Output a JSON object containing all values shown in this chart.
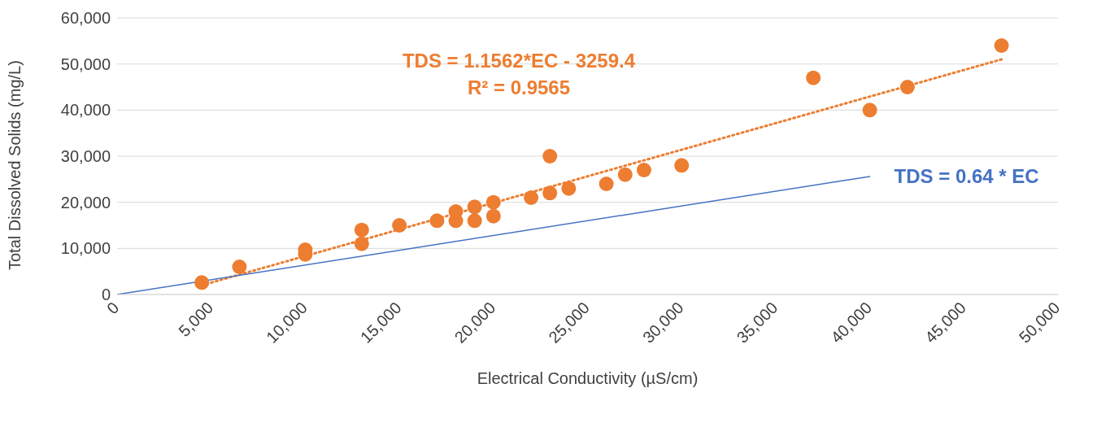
{
  "chart_data": {
    "type": "scatter",
    "xlabel": "Electrical Conductivity (µS/cm)",
    "ylabel": "Total Dissolved Solids (mg/L)",
    "xlim": [
      0,
      50000
    ],
    "xticks": [
      0,
      {
        "value": 5000,
        "label": "5,000"
      },
      {
        "value": 10000,
        "label": "10,000"
      },
      {
        "value": 15000,
        "label": "15,000"
      },
      {
        "value": 20000,
        "label": "20,000"
      },
      {
        "value": 25000,
        "label": "25,000"
      },
      {
        "value": 30000,
        "label": "30,000"
      },
      {
        "value": 35000,
        "label": "35,000"
      },
      {
        "value": 40000,
        "label": "40,000"
      },
      {
        "value": 45000,
        "label": "45,000"
      },
      {
        "value": 50000,
        "label": "50,000"
      }
    ],
    "ylim": [
      0,
      60000
    ],
    "yticks": [
      0,
      {
        "value": 10000,
        "label": "10,000"
      },
      {
        "value": 20000,
        "label": "20,000"
      },
      {
        "value": 30000,
        "label": "30,000"
      },
      {
        "value": 40000,
        "label": "40,000"
      },
      {
        "value": 50000,
        "label": "50,000"
      },
      {
        "value": 60000,
        "label": "60,000"
      }
    ],
    "grid": "y",
    "legend": false,
    "annotations": [
      "R² = 0.9565"
    ],
    "series": [
      {
        "color": "#ed7d31",
        "marker": "circle",
        "x": [
          4500,
          6500,
          10000,
          10000,
          13000,
          13000,
          15000,
          17000,
          18000,
          18000,
          19000,
          19000,
          20000,
          20000,
          22000,
          23000,
          23000,
          24000,
          26000,
          27000,
          28000,
          30000,
          37000,
          40000,
          42000,
          47000
        ],
        "values": [
          2600,
          6000,
          9700,
          8700,
          14000,
          11000,
          15000,
          16000,
          18000,
          16000,
          19000,
          16000,
          20000,
          17000,
          21000,
          30000,
          22000,
          23000,
          24000,
          26000,
          27000,
          28000,
          47000,
          40000,
          45000,
          54000
        ]
      },
      {
        "type": "line",
        "name": "TDS = 1.1562*EC - 3259.4",
        "color": "#ed7d31",
        "line_style": "dotted",
        "marker": "none",
        "x": [
          4500,
          47000
        ],
        "values": [
          2000,
          51000
        ]
      },
      {
        "type": "line",
        "name": "TDS = 0.64 * EC",
        "color": "#4472c4",
        "line_style": "solid",
        "marker": "none",
        "x": [
          0,
          40000
        ],
        "values": [
          0,
          25600
        ]
      }
    ]
  }
}
